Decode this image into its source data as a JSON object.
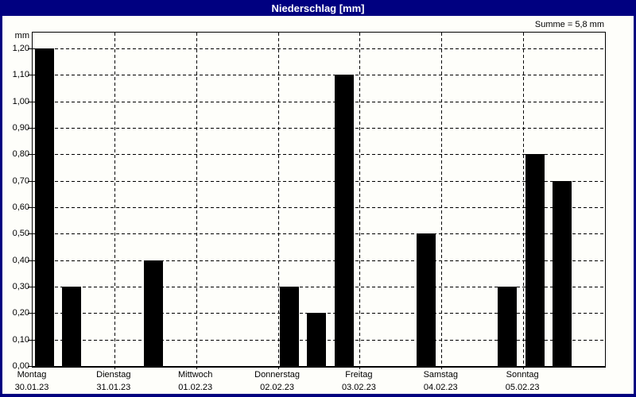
{
  "window": {
    "title": "Niederschlag [mm]",
    "titlebar_color": "#000080",
    "background_color": "#fefefa"
  },
  "chart_data": {
    "type": "bar",
    "title": "Niederschlag [mm]",
    "ylabel": "mm",
    "xlabel": "",
    "sum_annotation": "Summe = 5,8 mm",
    "total_mm": 5.8,
    "ylim": [
      0,
      1.26
    ],
    "ytick_step": 0.1,
    "ytick_labels": [
      "0,00",
      "0,10",
      "0,20",
      "0,30",
      "0,40",
      "0,50",
      "0,60",
      "0,70",
      "0,80",
      "0,90",
      "1,00",
      "1,10",
      "1,20"
    ],
    "grid": true,
    "grid_style": "dashed",
    "legend": "none",
    "bar_color": "#000000",
    "slots_per_day": 3,
    "days": [
      {
        "label": "Montag",
        "date": "30.01.23",
        "values": [
          1.2,
          0.3,
          0
        ]
      },
      {
        "label": "Dienstag",
        "date": "31.01.23",
        "values": [
          0,
          0.4,
          0
        ]
      },
      {
        "label": "Mittwoch",
        "date": "01.02.23",
        "values": [
          0,
          0,
          0
        ]
      },
      {
        "label": "Donnerstag",
        "date": "02.02.23",
        "values": [
          0.3,
          0.2,
          1.1
        ]
      },
      {
        "label": "Freitag",
        "date": "03.02.23",
        "values": [
          0,
          0,
          0.5
        ]
      },
      {
        "label": "Samstag",
        "date": "04.02.23",
        "values": [
          0,
          0,
          0.3
        ]
      },
      {
        "label": "Sonntag",
        "date": "05.02.23",
        "values": [
          0.8,
          0.7,
          0
        ]
      }
    ]
  }
}
